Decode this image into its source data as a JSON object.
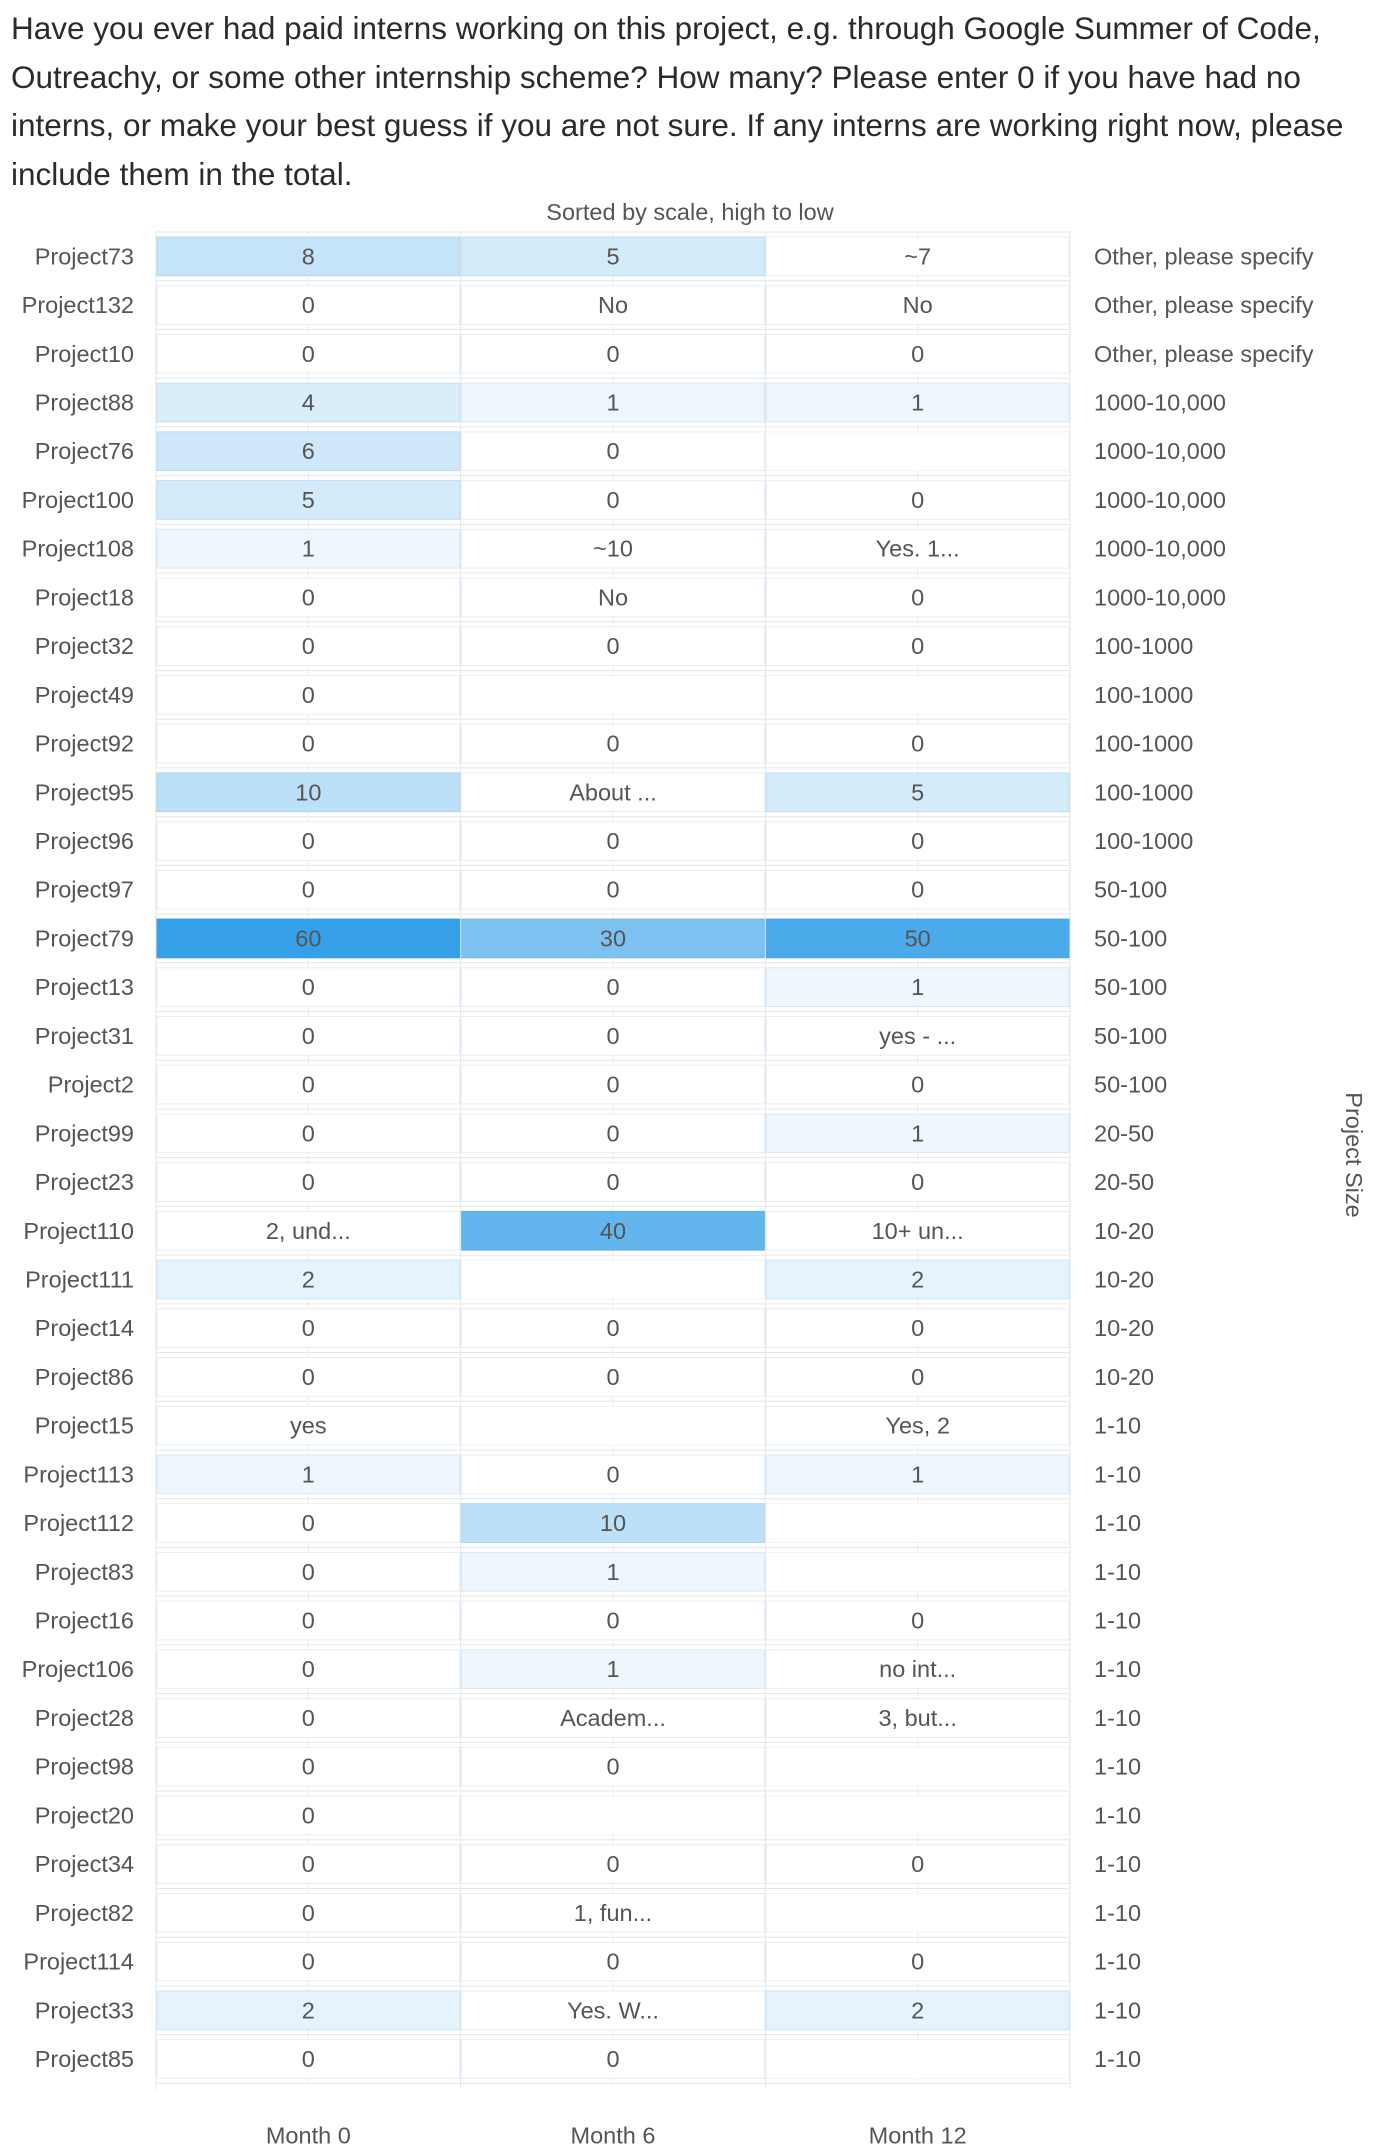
{
  "question": "Have you ever had paid interns working on this project, e.g. through Google Summer of Code, Outreachy, or some other internship scheme? How many? Please enter 0 if you have had no interns, or make your best guess if you are not sure. If any interns are working right now, please include them in the total.",
  "chart_data": {
    "type": "heatmap",
    "subtitle": "Sorted by scale, high to low",
    "columns": [
      "Month 0",
      "Month 6",
      "Month 12"
    ],
    "right_axis_label": "Project Size",
    "color_scale": {
      "low": "#ffffff",
      "high": "#35a0e8",
      "min": 0,
      "max": 60
    },
    "rows": [
      {
        "project": "Project73",
        "size": "Other, please specify",
        "cells": [
          "8",
          "5",
          "~7"
        ]
      },
      {
        "project": "Project132",
        "size": "Other, please specify",
        "cells": [
          "0",
          "No",
          "No"
        ]
      },
      {
        "project": "Project10",
        "size": "Other, please specify",
        "cells": [
          "0",
          "0",
          "0"
        ]
      },
      {
        "project": "Project88",
        "size": "1000-10,000",
        "cells": [
          "4",
          "1",
          "1"
        ]
      },
      {
        "project": "Project76",
        "size": "1000-10,000",
        "cells": [
          "6",
          "0",
          ""
        ]
      },
      {
        "project": "Project100",
        "size": "1000-10,000",
        "cells": [
          "5",
          "0",
          "0"
        ]
      },
      {
        "project": "Project108",
        "size": "1000-10,000",
        "cells": [
          "1",
          "~10",
          "Yes. 1..."
        ]
      },
      {
        "project": "Project18",
        "size": "1000-10,000",
        "cells": [
          "0",
          "No",
          "0"
        ]
      },
      {
        "project": "Project32",
        "size": "100-1000",
        "cells": [
          "0",
          "0",
          "0"
        ]
      },
      {
        "project": "Project49",
        "size": "100-1000",
        "cells": [
          "0",
          "",
          ""
        ]
      },
      {
        "project": "Project92",
        "size": "100-1000",
        "cells": [
          "0",
          "0",
          "0"
        ]
      },
      {
        "project": "Project95",
        "size": "100-1000",
        "cells": [
          "10",
          "About ...",
          "5"
        ]
      },
      {
        "project": "Project96",
        "size": "100-1000",
        "cells": [
          "0",
          "0",
          "0"
        ]
      },
      {
        "project": "Project97",
        "size": "50-100",
        "cells": [
          "0",
          "0",
          "0"
        ]
      },
      {
        "project": "Project79",
        "size": "50-100",
        "cells": [
          "60",
          "30",
          "50"
        ]
      },
      {
        "project": "Project13",
        "size": "50-100",
        "cells": [
          "0",
          "0",
          "1"
        ]
      },
      {
        "project": "Project31",
        "size": "50-100",
        "cells": [
          "0",
          "0",
          "yes - ..."
        ]
      },
      {
        "project": "Project2",
        "size": "50-100",
        "cells": [
          "0",
          "0",
          "0"
        ]
      },
      {
        "project": "Project99",
        "size": "20-50",
        "cells": [
          "0",
          "0",
          "1"
        ]
      },
      {
        "project": "Project23",
        "size": "20-50",
        "cells": [
          "0",
          "0",
          "0"
        ]
      },
      {
        "project": "Project110",
        "size": "10-20",
        "cells": [
          "2, und...",
          "40",
          "10+ un..."
        ]
      },
      {
        "project": "Project111",
        "size": "10-20",
        "cells": [
          "2",
          "",
          "2"
        ]
      },
      {
        "project": "Project14",
        "size": "10-20",
        "cells": [
          "0",
          "0",
          "0"
        ]
      },
      {
        "project": "Project86",
        "size": "10-20",
        "cells": [
          "0",
          "0",
          "0"
        ]
      },
      {
        "project": "Project15",
        "size": "1-10",
        "cells": [
          "yes",
          "",
          "Yes, 2"
        ]
      },
      {
        "project": "Project113",
        "size": "1-10",
        "cells": [
          "1",
          "0",
          "1"
        ]
      },
      {
        "project": "Project112",
        "size": "1-10",
        "cells": [
          "0",
          "10",
          ""
        ]
      },
      {
        "project": "Project83",
        "size": "1-10",
        "cells": [
          "0",
          "1",
          ""
        ]
      },
      {
        "project": "Project16",
        "size": "1-10",
        "cells": [
          "0",
          "0",
          "0"
        ]
      },
      {
        "project": "Project106",
        "size": "1-10",
        "cells": [
          "0",
          "1",
          "no int..."
        ]
      },
      {
        "project": "Project28",
        "size": "1-10",
        "cells": [
          "0",
          "Academ...",
          "3, but..."
        ]
      },
      {
        "project": "Project98",
        "size": "1-10",
        "cells": [
          "0",
          "0",
          ""
        ]
      },
      {
        "project": "Project20",
        "size": "1-10",
        "cells": [
          "0",
          "",
          ""
        ]
      },
      {
        "project": "Project34",
        "size": "1-10",
        "cells": [
          "0",
          "0",
          "0"
        ]
      },
      {
        "project": "Project82",
        "size": "1-10",
        "cells": [
          "0",
          "1, fun...",
          ""
        ]
      },
      {
        "project": "Project114",
        "size": "1-10",
        "cells": [
          "0",
          "0",
          "0"
        ]
      },
      {
        "project": "Project33",
        "size": "1-10",
        "cells": [
          "2",
          "Yes. W...",
          "2"
        ]
      },
      {
        "project": "Project85",
        "size": "1-10",
        "cells": [
          "0",
          "0",
          ""
        ]
      }
    ]
  }
}
